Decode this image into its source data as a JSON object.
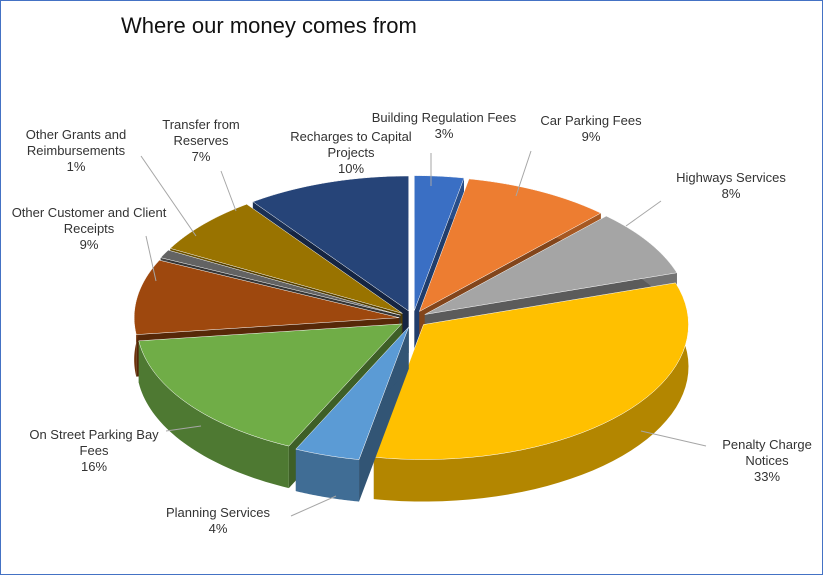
{
  "chart_data": {
    "type": "pie",
    "title": "Where our money comes from",
    "categories": [
      "Building Regulation Fees",
      "Car Parking Fees",
      "Highways Services",
      "Penalty Charge Notices",
      "Planning Services",
      "On Street Parking Bay Fees",
      "Other Customer and Client Receipts",
      "Other Grants and Reimbursements",
      "Transfer from Reserves",
      "Recharges to Capital Projects"
    ],
    "values": [
      3,
      9,
      8,
      33,
      4,
      16,
      9,
      1,
      7,
      10
    ],
    "value_labels": [
      "3%",
      "9%",
      "8%",
      "33%",
      "4%",
      "16%",
      "9%",
      "1%",
      "7%",
      "10%"
    ],
    "colors": [
      "#3a6fc4",
      "#ed7d31",
      "#a5a5a5",
      "#ffc000",
      "#5b9bd5",
      "#70ad47",
      "#9e480e",
      "#636363",
      "#997300",
      "#264478"
    ]
  }
}
